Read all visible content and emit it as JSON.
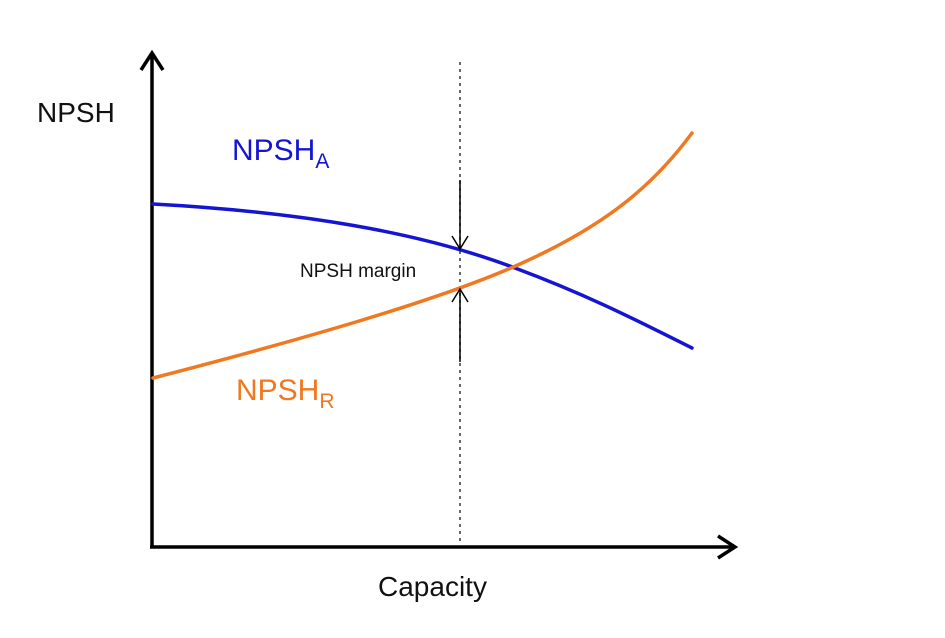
{
  "y_axis_label": "NPSH",
  "x_axis_label": "Capacity",
  "curves": {
    "available": {
      "label_main": "NPSH",
      "label_sub": "A",
      "color": "#1414d2"
    },
    "required": {
      "label_main": "NPSH",
      "label_sub": "R",
      "color": "#f07820"
    }
  },
  "margin_label": "NPSH margin",
  "axis_color": "#000000"
}
